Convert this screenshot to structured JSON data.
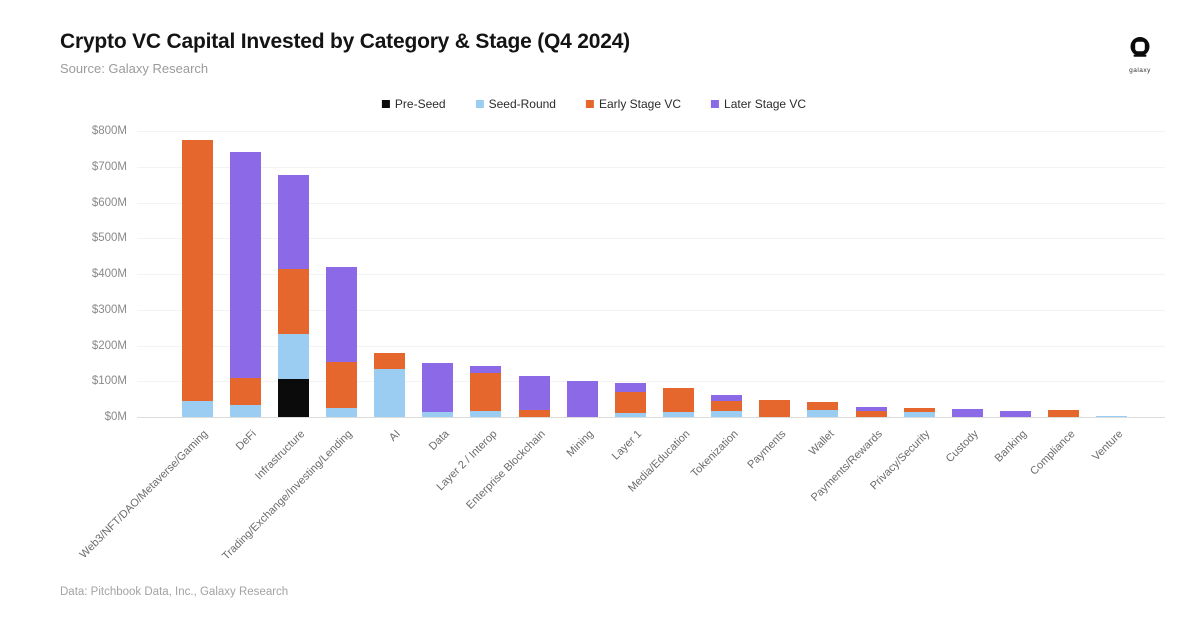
{
  "header": {
    "title": "Crypto VC Capital Invested by Category & Stage (Q4 2024)",
    "source": "Source: Galaxy Research",
    "logo_text": "galaxy"
  },
  "footer": {
    "credit": "Data: Pitchbook Data, Inc., Galaxy Research"
  },
  "colors": {
    "pre_seed": "#0b0b0b",
    "seed_round": "#9bcdf2",
    "early_stage": "#e5672d",
    "later_stage": "#8c69e6",
    "gridline": "#f3f3f3",
    "axis_line": "#dcdcdc"
  },
  "chart_data": {
    "type": "bar",
    "stacked": true,
    "title": "Crypto VC Capital Invested by Category & Stage (Q4 2024)",
    "unit": "$M",
    "ylim": [
      0,
      800
    ],
    "ytick_step": 100,
    "ytick_labels": [
      "$0M",
      "$100M",
      "$200M",
      "$300M",
      "$400M",
      "$500M",
      "$600M",
      "$700M",
      "$800M"
    ],
    "grid": true,
    "legend_position": "top-center",
    "categories": [
      "Web3/NFT/DAO/Metaverse/Gaming",
      "DeFi",
      "Infrastructure",
      "Trading/Exchange/Investing/Lending",
      "AI",
      "Data",
      "Layer 2 / Interop",
      "Enterprise Blockchain",
      "Mining",
      "Layer 1",
      "Media/Education",
      "Tokenization",
      "Payments",
      "Wallet",
      "Payments/Rewards",
      "Privacy/Security",
      "Custody",
      "Banking",
      "Compliance",
      "Venture"
    ],
    "series": [
      {
        "name": "Pre-Seed",
        "color": "#0b0b0b",
        "values": [
          0,
          0,
          105,
          0,
          0,
          0,
          0,
          0,
          0,
          0,
          0,
          0,
          0,
          0,
          0,
          0,
          0,
          0,
          0,
          0
        ]
      },
      {
        "name": "Seed-Round",
        "color": "#9bcdf2",
        "values": [
          45,
          35,
          126,
          24,
          133,
          14,
          18,
          0,
          0,
          11,
          14,
          18,
          0,
          21,
          0,
          15,
          0,
          0,
          0,
          4
        ]
      },
      {
        "name": "Early Stage VC",
        "color": "#e5672d",
        "values": [
          730,
          73,
          182,
          129,
          45,
          0,
          104,
          20,
          0,
          59,
          67,
          28,
          48,
          21,
          17,
          10,
          0,
          0,
          20,
          0
        ]
      },
      {
        "name": "Later Stage VC",
        "color": "#8c69e6",
        "values": [
          0,
          632,
          263,
          266,
          0,
          136,
          22,
          96,
          100,
          25,
          0,
          16,
          0,
          0,
          11,
          0,
          22,
          18,
          0,
          0
        ]
      }
    ],
    "totals": [
      775,
      740,
      676,
      419,
      178,
      150,
      144,
      116,
      100,
      95,
      81,
      62,
      48,
      42,
      28,
      25,
      22,
      18,
      20,
      4
    ]
  }
}
